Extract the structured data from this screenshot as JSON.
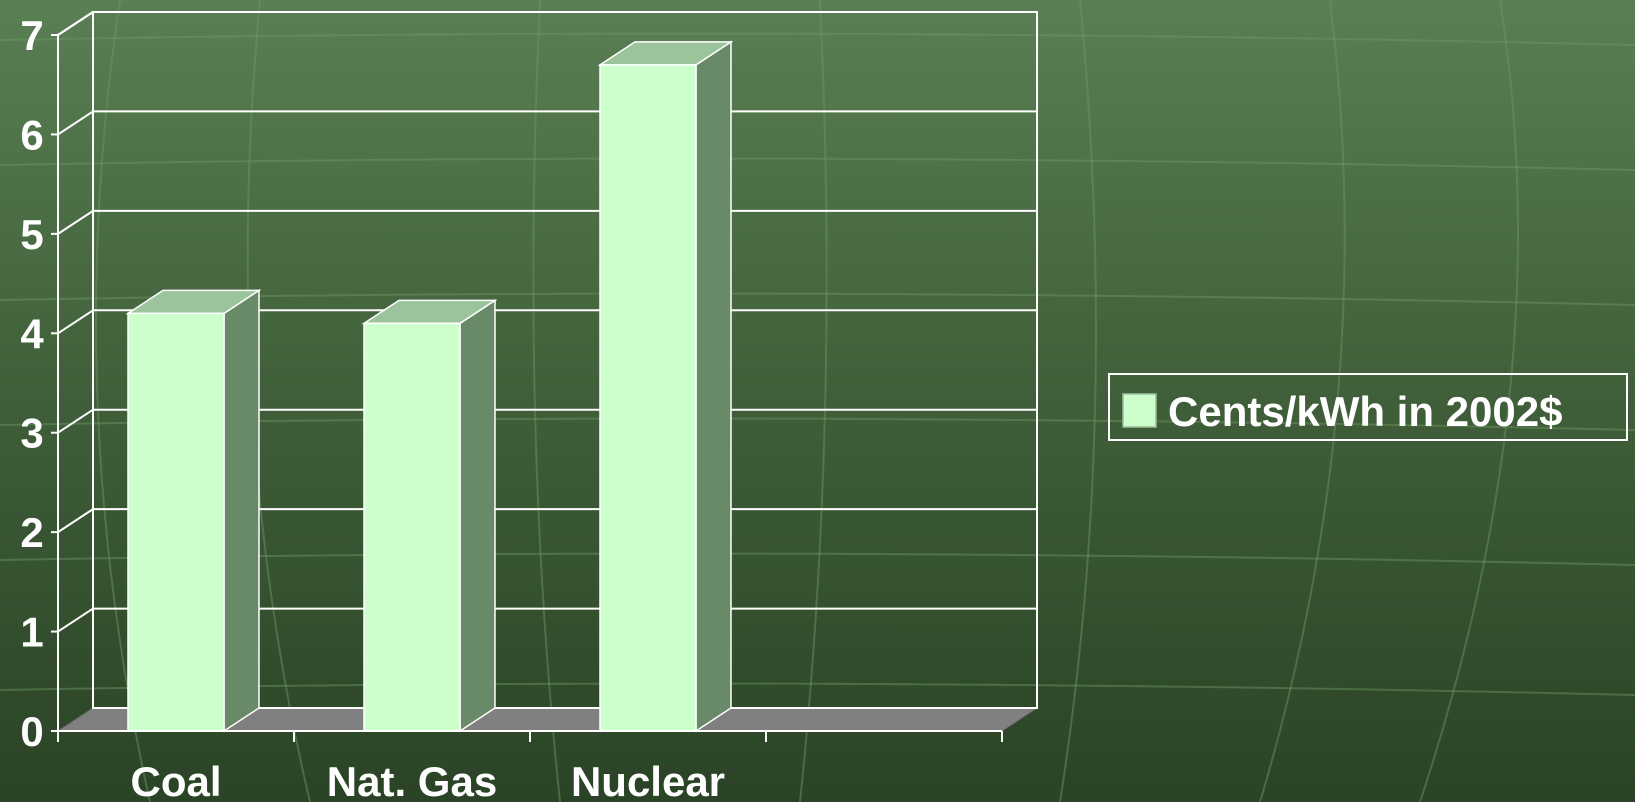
{
  "chart_data": {
    "type": "bar",
    "categories": [
      "Coal",
      "Nat. Gas",
      "Nuclear"
    ],
    "series": [
      {
        "name": "Cents/kWh in 2002$",
        "values": [
          4.2,
          4.1,
          6.7
        ]
      }
    ],
    "ylim": [
      0,
      7
    ],
    "yticks": [
      "0",
      "1",
      "2",
      "3",
      "4",
      "5",
      "6",
      "7"
    ],
    "grid": true,
    "legend_position": "right",
    "style": "3d",
    "colors": {
      "bar_front": "#ccffcc",
      "bar_top": "#9cc49c",
      "bar_side": "#688a68",
      "floor": "#808080",
      "gridline": "#ffffff",
      "text": "#ffffff"
    }
  },
  "legend": {
    "label": "Cents/kWh in 2002$"
  }
}
